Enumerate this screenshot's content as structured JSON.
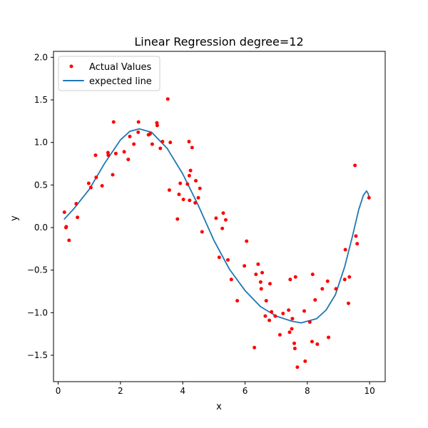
{
  "chart_data": {
    "type": "scatter",
    "title": "Linear Regression degree=12",
    "xlabel": "x",
    "ylabel": "y",
    "xlim": [
      -0.15,
      10.5
    ],
    "ylim": [
      -1.81,
      2.07
    ],
    "xticks": [
      0,
      2,
      4,
      6,
      8,
      10
    ],
    "xtick_labels": [
      "0",
      "2",
      "4",
      "6",
      "8",
      "10"
    ],
    "yticks": [
      -1.5,
      -1.0,
      -0.5,
      0.0,
      0.5,
      1.0,
      1.5,
      2.0
    ],
    "ytick_labels": [
      "−1.5",
      "−1.0",
      "−0.5",
      "0.0",
      "0.5",
      "1.0",
      "1.5",
      "2.0"
    ],
    "grid": false,
    "legend_position": "upper-left",
    "series": [
      {
        "name": "Actual Values",
        "kind": "scatter",
        "color": "#ff0000",
        "points": [
          [
            0.2,
            0.18
          ],
          [
            0.25,
            0.0
          ],
          [
            0.26,
            0.01
          ],
          [
            0.35,
            -0.15
          ],
          [
            0.58,
            0.28
          ],
          [
            0.62,
            0.12
          ],
          [
            0.98,
            0.52
          ],
          [
            1.05,
            0.47
          ],
          [
            1.2,
            0.85
          ],
          [
            1.22,
            0.59
          ],
          [
            1.41,
            0.49
          ],
          [
            1.6,
            0.88
          ],
          [
            1.61,
            0.85
          ],
          [
            1.75,
            0.62
          ],
          [
            1.78,
            1.24
          ],
          [
            1.85,
            0.87
          ],
          [
            2.12,
            0.89
          ],
          [
            2.25,
            0.8
          ],
          [
            2.3,
            1.07
          ],
          [
            2.43,
            0.98
          ],
          [
            2.57,
            1.12
          ],
          [
            2.58,
            1.24
          ],
          [
            2.9,
            1.09
          ],
          [
            2.95,
            1.1
          ],
          [
            3.02,
            0.98
          ],
          [
            3.17,
            1.23
          ],
          [
            3.18,
            1.2
          ],
          [
            3.28,
            0.93
          ],
          [
            3.35,
            1.01
          ],
          [
            3.52,
            1.51
          ],
          [
            3.57,
            0.44
          ],
          [
            3.6,
            1.0
          ],
          [
            3.83,
            0.1
          ],
          [
            3.88,
            0.39
          ],
          [
            3.92,
            0.52
          ],
          [
            4.02,
            0.33
          ],
          [
            4.15,
            0.51
          ],
          [
            4.2,
            1.01
          ],
          [
            4.21,
            0.61
          ],
          [
            4.22,
            0.32
          ],
          [
            4.25,
            0.67
          ],
          [
            4.3,
            0.94
          ],
          [
            4.4,
            0.29
          ],
          [
            4.42,
            0.55
          ],
          [
            4.5,
            0.35
          ],
          [
            4.55,
            0.46
          ],
          [
            4.62,
            -0.05
          ],
          [
            5.07,
            0.11
          ],
          [
            5.17,
            -0.35
          ],
          [
            5.27,
            -0.01
          ],
          [
            5.3,
            0.17
          ],
          [
            5.38,
            0.09
          ],
          [
            5.45,
            -0.38
          ],
          [
            5.56,
            -0.61
          ],
          [
            5.75,
            -0.86
          ],
          [
            5.98,
            -0.45
          ],
          [
            6.05,
            -0.16
          ],
          [
            6.3,
            -1.41
          ],
          [
            6.35,
            -0.55
          ],
          [
            6.42,
            -0.43
          ],
          [
            6.5,
            -0.64
          ],
          [
            6.52,
            -0.72
          ],
          [
            6.55,
            -0.53
          ],
          [
            6.65,
            -1.04
          ],
          [
            6.68,
            -0.86
          ],
          [
            6.78,
            -1.09
          ],
          [
            6.8,
            -0.66
          ],
          [
            6.85,
            -0.99
          ],
          [
            6.97,
            -1.04
          ],
          [
            7.12,
            -1.26
          ],
          [
            7.22,
            -1.01
          ],
          [
            7.4,
            -0.97
          ],
          [
            7.43,
            -1.23
          ],
          [
            7.45,
            -0.61
          ],
          [
            7.5,
            -1.19
          ],
          [
            7.52,
            -1.07
          ],
          [
            7.58,
            -1.36
          ],
          [
            7.6,
            -1.42
          ],
          [
            7.62,
            -0.58
          ],
          [
            7.68,
            -1.64
          ],
          [
            7.9,
            -0.98
          ],
          [
            7.93,
            -1.57
          ],
          [
            8.08,
            -1.11
          ],
          [
            8.15,
            -1.34
          ],
          [
            8.17,
            -0.55
          ],
          [
            8.25,
            -0.85
          ],
          [
            8.32,
            -1.37
          ],
          [
            8.48,
            -0.72
          ],
          [
            8.65,
            -0.63
          ],
          [
            8.68,
            -1.29
          ],
          [
            8.92,
            -0.72
          ],
          [
            9.2,
            -0.61
          ],
          [
            9.22,
            -0.26
          ],
          [
            9.32,
            -0.89
          ],
          [
            9.35,
            -0.58
          ],
          [
            9.53,
            0.73
          ],
          [
            9.56,
            -0.1
          ],
          [
            9.6,
            -0.19
          ],
          [
            9.98,
            0.35
          ]
        ]
      },
      {
        "name": "expected line",
        "kind": "line",
        "color": "#1f77b4",
        "points": [
          [
            0.2,
            0.1
          ],
          [
            0.5,
            0.22
          ],
          [
            1.0,
            0.45
          ],
          [
            1.5,
            0.76
          ],
          [
            2.0,
            1.03
          ],
          [
            2.3,
            1.13
          ],
          [
            2.6,
            1.16
          ],
          [
            3.0,
            1.12
          ],
          [
            3.5,
            0.93
          ],
          [
            4.0,
            0.63
          ],
          [
            4.5,
            0.26
          ],
          [
            5.0,
            -0.15
          ],
          [
            5.5,
            -0.49
          ],
          [
            6.0,
            -0.74
          ],
          [
            6.5,
            -0.93
          ],
          [
            7.0,
            -1.04
          ],
          [
            7.5,
            -1.1
          ],
          [
            7.8,
            -1.12
          ],
          [
            8.0,
            -1.1
          ],
          [
            8.3,
            -1.07
          ],
          [
            8.6,
            -0.97
          ],
          [
            8.9,
            -0.79
          ],
          [
            9.2,
            -0.46
          ],
          [
            9.45,
            -0.1
          ],
          [
            9.65,
            0.21
          ],
          [
            9.8,
            0.38
          ],
          [
            9.9,
            0.43
          ],
          [
            9.95,
            0.4
          ],
          [
            10.0,
            0.34
          ]
        ]
      }
    ]
  }
}
